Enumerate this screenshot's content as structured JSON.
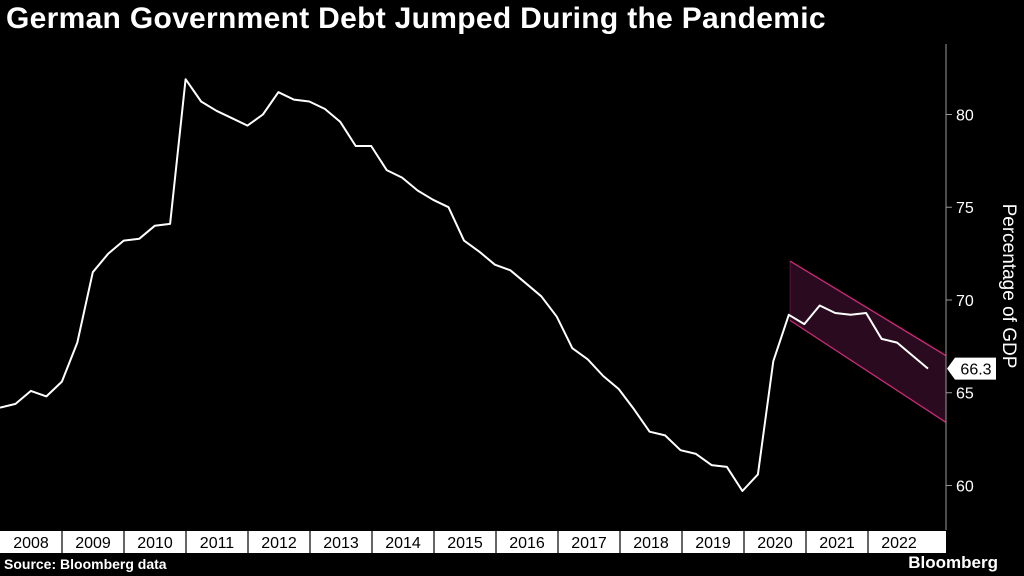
{
  "title": "German Government Debt Jumped During the Pandemic",
  "source": "Source: Bloomberg data",
  "brand": "Bloomberg",
  "colors": {
    "background": "#000000",
    "line": "#ffffff",
    "channel_fill": "#2a0a1e",
    "channel_stroke": "#cc2a78",
    "axis": "#9a9a9a",
    "year_band": "#ffffff"
  },
  "chart_data": {
    "type": "line",
    "title": "German Government Debt Jumped During the Pandemic",
    "ylabel": "Percentage of GDP",
    "ylim": [
      57.6,
      83.8
    ],
    "yticks": [
      60,
      65,
      70,
      75,
      80
    ],
    "y_axis_side": "right",
    "grid": false,
    "x_labels": [
      "2008",
      "2009",
      "2010",
      "2011",
      "2012",
      "2013",
      "2014",
      "2015",
      "2016",
      "2017",
      "2018",
      "2019",
      "2020",
      "2021",
      "2022"
    ],
    "last_value_label": "66.3",
    "series": [
      {
        "values": [
          64.2,
          64.4,
          65.1,
          64.8,
          65.6,
          67.7,
          71.5,
          72.5,
          73.2,
          73.3,
          74.0,
          74.1,
          81.9,
          80.7,
          80.2,
          79.8,
          79.4,
          80.0,
          81.2,
          80.8,
          80.7,
          80.3,
          79.6,
          78.3,
          78.3,
          77.0,
          76.6,
          75.9,
          75.4,
          75.0,
          73.2,
          72.6,
          71.9,
          71.6,
          70.9,
          70.2,
          69.1,
          67.4,
          66.8,
          65.9,
          65.2,
          64.1,
          62.9,
          62.7,
          61.9,
          61.7,
          61.1,
          61.0,
          59.7,
          60.6,
          66.7,
          69.2,
          68.7,
          69.7,
          69.3,
          69.2,
          69.3,
          67.9,
          67.7,
          67.0,
          66.3
        ]
      }
    ],
    "annotations": [
      {
        "type": "channel",
        "upper": [
          72.1,
          67.0
        ],
        "lower": [
          68.9,
          63.4
        ]
      }
    ]
  }
}
